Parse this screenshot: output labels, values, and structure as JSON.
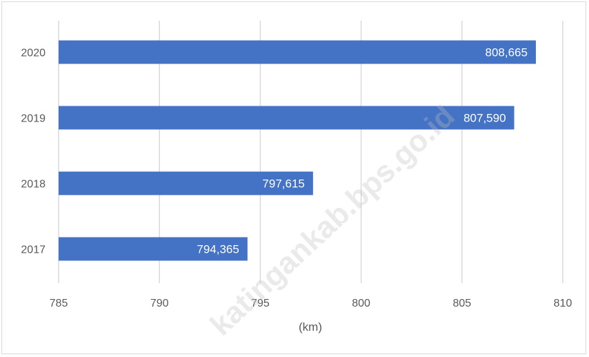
{
  "chart_data": {
    "type": "bar",
    "orientation": "horizontal",
    "categories": [
      "2020",
      "2019",
      "2018",
      "2017"
    ],
    "values": [
      808.665,
      807.59,
      797.615,
      794.365
    ],
    "data_labels": [
      "808,665",
      "807,590",
      "797,615",
      "794,365"
    ],
    "xlabel": "(km)",
    "xlim": [
      785,
      810
    ],
    "xticks": [
      785,
      790,
      795,
      800,
      805,
      810
    ],
    "grid": true,
    "bar_color": "#4472c4",
    "gridline_color": "#d9d9d9"
  },
  "watermark": {
    "text": "katingankab.bps.go.id"
  }
}
